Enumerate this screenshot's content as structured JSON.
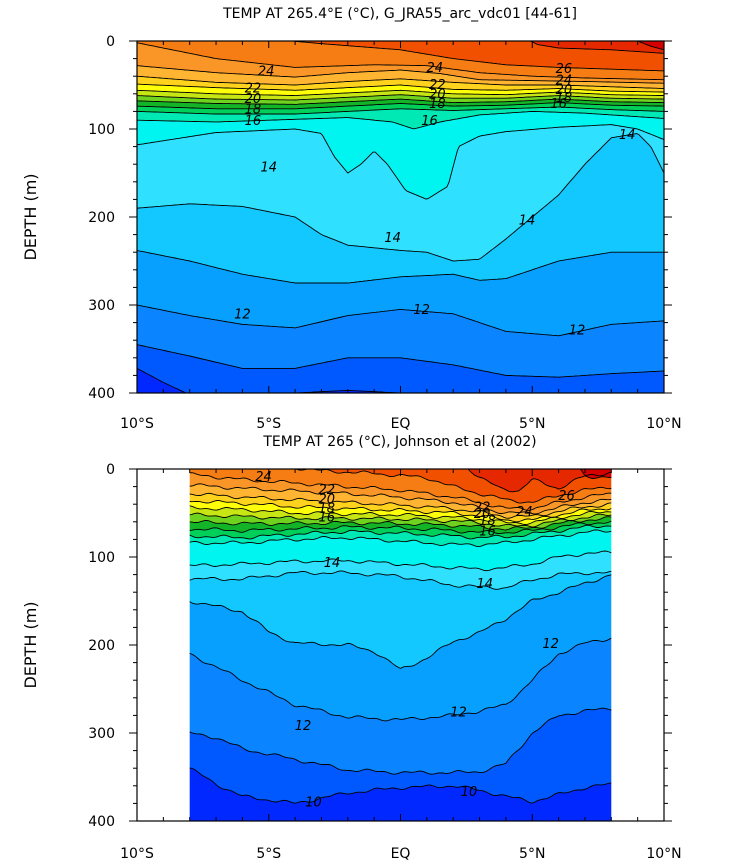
{
  "chart_data": [
    {
      "type": "contour",
      "title": "TEMP AT 265.4°E (°C), G_JRA55_arc_vdc01 [44-61]",
      "ylabel": "DEPTH (m)",
      "xlabel": "",
      "x_ticks": [
        "10°S",
        "5°S",
        "EQ",
        "5°N",
        "10°N"
      ],
      "x_tick_values": [
        -10,
        -5,
        0,
        5,
        10
      ],
      "y_ticks": [
        "0",
        "100",
        "200",
        "300",
        "400"
      ],
      "y_tick_values": [
        0,
        100,
        200,
        300,
        400
      ],
      "xlim": [
        -10,
        10
      ],
      "ylim": [
        0,
        400
      ],
      "y_inverted": true,
      "data_xlim": [
        -10,
        10
      ],
      "contour_labels": [
        {
          "text": "24",
          "x": -5.1,
          "depth": 36
        },
        {
          "text": "22",
          "x": -5.6,
          "depth": 55
        },
        {
          "text": "20",
          "x": -5.6,
          "depth": 67
        },
        {
          "text": "18",
          "x": -5.6,
          "depth": 79
        },
        {
          "text": "16",
          "x": -5.6,
          "depth": 92
        },
        {
          "text": "24",
          "x": 1.3,
          "depth": 32
        },
        {
          "text": "22",
          "x": 1.4,
          "depth": 51
        },
        {
          "text": "20",
          "x": 1.4,
          "depth": 62
        },
        {
          "text": "18",
          "x": 1.4,
          "depth": 73
        },
        {
          "text": "16",
          "x": 1.1,
          "depth": 92
        },
        {
          "text": "26",
          "x": 6.2,
          "depth": 33
        },
        {
          "text": "24",
          "x": 6.2,
          "depth": 46
        },
        {
          "text": "20",
          "x": 6.2,
          "depth": 57
        },
        {
          "text": "18",
          "x": 6.2,
          "depth": 66
        },
        {
          "text": "16",
          "x": 6.0,
          "depth": 73
        },
        {
          "text": "14",
          "x": 8.6,
          "depth": 108
        },
        {
          "text": "14",
          "x": -5.0,
          "depth": 145
        },
        {
          "text": "14",
          "x": -0.3,
          "depth": 225
        },
        {
          "text": "14",
          "x": 4.8,
          "depth": 205
        },
        {
          "text": "12",
          "x": -6.0,
          "depth": 312
        },
        {
          "text": "12",
          "x": 0.8,
          "depth": 307
        },
        {
          "text": "12",
          "x": 6.7,
          "depth": 330
        }
      ],
      "colorbar": "none",
      "contour_interval": 1,
      "levels": [
        9,
        10,
        11,
        12,
        13,
        14,
        15,
        16,
        17,
        18,
        19,
        20,
        21,
        22,
        23,
        24,
        25,
        26,
        27,
        28
      ]
    },
    {
      "type": "contour",
      "title": "TEMP AT 265 (°C), Johnson et al (2002)",
      "ylabel": "DEPTH (m)",
      "xlabel": "",
      "x_ticks": [
        "10°S",
        "5°S",
        "EQ",
        "5°N",
        "10°N"
      ],
      "x_tick_values": [
        -10,
        -5,
        0,
        5,
        10
      ],
      "y_ticks": [
        "0",
        "100",
        "200",
        "300",
        "400"
      ],
      "y_tick_values": [
        0,
        100,
        200,
        300,
        400
      ],
      "xlim": [
        -10,
        10
      ],
      "ylim": [
        0,
        400
      ],
      "y_inverted": true,
      "data_xlim": [
        -8,
        8
      ],
      "contour_labels": [
        {
          "text": "24",
          "x": -5.2,
          "depth": 10
        },
        {
          "text": "22",
          "x": -2.8,
          "depth": 25
        },
        {
          "text": "20",
          "x": -2.8,
          "depth": 36
        },
        {
          "text": "18",
          "x": -2.8,
          "depth": 46
        },
        {
          "text": "16",
          "x": -2.8,
          "depth": 56
        },
        {
          "text": "24",
          "x": 4.7,
          "depth": 50
        },
        {
          "text": "22",
          "x": 3.1,
          "depth": 45
        },
        {
          "text": "20",
          "x": 3.1,
          "depth": 52
        },
        {
          "text": "18",
          "x": 3.3,
          "depth": 60
        },
        {
          "text": "16",
          "x": 3.3,
          "depth": 72
        },
        {
          "text": "26",
          "x": 6.3,
          "depth": 32
        },
        {
          "text": "14",
          "x": -2.6,
          "depth": 108
        },
        {
          "text": "14",
          "x": 3.2,
          "depth": 132
        },
        {
          "text": "12",
          "x": 5.7,
          "depth": 200
        },
        {
          "text": "12",
          "x": -3.7,
          "depth": 293
        },
        {
          "text": "12",
          "x": 2.2,
          "depth": 278
        },
        {
          "text": "10",
          "x": -3.3,
          "depth": 380
        },
        {
          "text": "10",
          "x": 2.6,
          "depth": 368
        }
      ],
      "colorbar": "none",
      "contour_interval": 1,
      "levels": [
        9,
        10,
        11,
        12,
        13,
        14,
        15,
        16,
        17,
        18,
        19,
        20,
        21,
        22,
        23,
        24,
        25,
        26,
        27,
        28
      ]
    }
  ],
  "colors": {
    "9": "#0028ff",
    "10": "#0058ff",
    "11": "#0a84ff",
    "12": "#08a0ff",
    "13": "#12c8ff",
    "14": "#30e0ff",
    "15": "#00f5f0",
    "16": "#00e8b4",
    "17": "#00d05a",
    "18": "#14b428",
    "19": "#6ed21e",
    "20": "#c8e614",
    "21": "#ffff0a",
    "22": "#ffd21e",
    "23": "#ffb432",
    "24": "#fa9628",
    "25": "#f57d14",
    "26": "#f05000",
    "27": "#e62800",
    "28": "#d40000"
  }
}
